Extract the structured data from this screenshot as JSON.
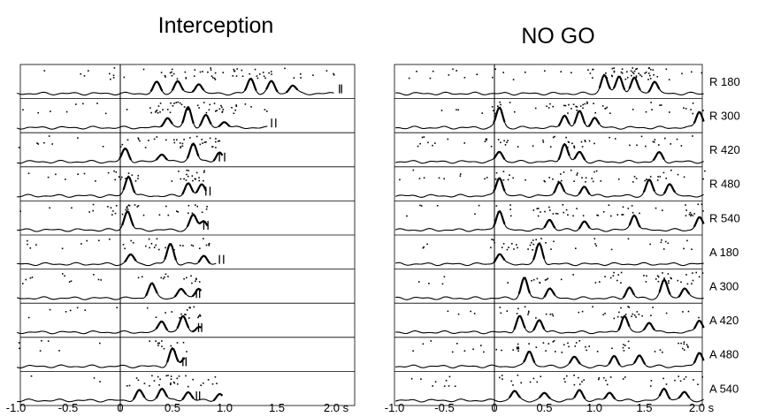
{
  "chart_data": {
    "type": "line",
    "description_kind": "peri-event raster plots with spike density histograms",
    "panels": [
      {
        "title": "Interception",
        "x_ticks": [
          "-1.0",
          "-0.5",
          "0",
          "0.5",
          "1.0",
          "1.5",
          "2.0 s"
        ],
        "xlim": [
          -1.0,
          2.2
        ],
        "event_line_x": 0,
        "rows": [
          {
            "peaks": [
              [
                0.35,
                0.5
              ],
              [
                0.55,
                0.6
              ],
              [
                0.75,
                0.5
              ],
              [
                1.25,
                0.7
              ],
              [
                1.45,
                0.55
              ],
              [
                1.65,
                0.4
              ]
            ],
            "end": 2.05,
            "end_marks": [
              2.1,
              2.12
            ],
            "raster_density": 0.9
          },
          {
            "peaks": [
              [
                0.45,
                0.5
              ],
              [
                0.65,
                0.95
              ],
              [
                0.82,
                0.55
              ],
              [
                1.0,
                0.3
              ]
            ],
            "end": 1.42,
            "end_marks": [
              1.45,
              1.49
            ],
            "raster_density": 0.8
          },
          {
            "peaks": [
              [
                0.05,
                0.6
              ],
              [
                0.4,
                0.4
              ],
              [
                0.7,
                0.9
              ],
              [
                0.95,
                0.45
              ]
            ],
            "end": 0.98,
            "end_marks": [
              0.95,
              1.0
            ],
            "raster_density": 0.7
          },
          {
            "peaks": [
              [
                0.08,
                0.95
              ],
              [
                0.65,
                0.6
              ],
              [
                0.78,
                0.5
              ]
            ],
            "end": 0.83,
            "end_marks": [
              0.82,
              0.86
            ],
            "raster_density": 0.6
          },
          {
            "peaks": [
              [
                0.07,
                0.9
              ],
              [
                0.7,
                0.7
              ],
              [
                0.8,
                0.4
              ]
            ],
            "end": 0.84,
            "end_marks": [
              0.8,
              0.84
            ],
            "raster_density": 0.6
          },
          {
            "peaks": [
              [
                0.1,
                0.45
              ],
              [
                0.48,
                0.95
              ],
              [
                0.8,
                0.4
              ]
            ],
            "end": 0.92,
            "end_marks": [
              0.95,
              0.99
            ],
            "raster_density": 0.5
          },
          {
            "peaks": [
              [
                0.3,
                0.7
              ],
              [
                0.58,
                0.45
              ],
              [
                0.75,
                0.5
              ]
            ],
            "end": 0.78,
            "end_marks": [
              0.73,
              0.76
            ],
            "raster_density": 0.4
          },
          {
            "peaks": [
              [
                0.4,
                0.55
              ],
              [
                0.6,
                0.75
              ],
              [
                0.75,
                0.3
              ]
            ],
            "end": 0.78,
            "end_marks": [
              0.75,
              0.78
            ],
            "raster_density": 0.4
          },
          {
            "peaks": [
              [
                0.5,
                0.8
              ],
              [
                0.62,
                0.4
              ]
            ],
            "end": 0.63,
            "end_marks": [
              0.6,
              0.63
            ],
            "raster_density": 0.35
          },
          {
            "peaks": [
              [
                0.18,
                0.45
              ],
              [
                0.4,
                0.6
              ],
              [
                0.65,
                0.4
              ],
              [
                0.95,
                0.3
              ]
            ],
            "end": 0.98,
            "end_marks": [
              0.73,
              0.76
            ],
            "raster_density": 0.5
          }
        ]
      },
      {
        "title": "NO GO",
        "x_ticks": [
          "-1.0",
          "-0.5",
          "0",
          "0.5",
          "1.0",
          "1.5",
          "2.0 s"
        ],
        "xlim": [
          -1.0,
          2.2
        ],
        "event_line_x": 0,
        "rows": [
          {
            "peaks": [
              [
                1.1,
                0.9
              ],
              [
                1.25,
                0.85
              ],
              [
                1.4,
                0.75
              ],
              [
                1.6,
                0.6
              ]
            ],
            "end": 2.1,
            "end_marks": [],
            "raster_density": 1.0
          },
          {
            "peaks": [
              [
                0.05,
                0.95
              ],
              [
                0.7,
                0.6
              ],
              [
                0.85,
                0.75
              ],
              [
                1.0,
                0.5
              ],
              [
                2.05,
                0.8
              ]
            ],
            "end": 2.1,
            "end_marks": [],
            "raster_density": 0.8
          },
          {
            "peaks": [
              [
                0.05,
                0.5
              ],
              [
                0.7,
                0.85
              ],
              [
                0.85,
                0.45
              ],
              [
                1.65,
                0.4
              ]
            ],
            "end": 2.1,
            "end_marks": [],
            "raster_density": 0.8
          },
          {
            "peaks": [
              [
                0.05,
                0.9
              ],
              [
                0.65,
                0.7
              ],
              [
                0.9,
                0.45
              ],
              [
                1.55,
                0.75
              ],
              [
                1.75,
                0.6
              ]
            ],
            "end": 2.1,
            "end_marks": [],
            "raster_density": 0.8
          },
          {
            "peaks": [
              [
                0.05,
                0.95
              ],
              [
                0.55,
                0.5
              ],
              [
                0.9,
                0.4
              ],
              [
                1.4,
                0.75
              ],
              [
                2.05,
                0.6
              ]
            ],
            "end": 2.1,
            "end_marks": [],
            "raster_density": 0.8
          },
          {
            "peaks": [
              [
                0.05,
                0.5
              ],
              [
                0.45,
                0.95
              ]
            ],
            "end": 2.1,
            "end_marks": [],
            "raster_density": 0.6
          },
          {
            "peaks": [
              [
                0.3,
                0.95
              ],
              [
                0.55,
                0.45
              ],
              [
                1.35,
                0.5
              ],
              [
                1.7,
                0.85
              ],
              [
                1.9,
                0.5
              ]
            ],
            "end": 2.1,
            "end_marks": [],
            "raster_density": 0.7
          },
          {
            "peaks": [
              [
                0.25,
                0.75
              ],
              [
                0.45,
                0.6
              ],
              [
                1.3,
                0.8
              ],
              [
                1.55,
                0.5
              ],
              [
                2.05,
                0.6
              ]
            ],
            "end": 2.1,
            "end_marks": [],
            "raster_density": 0.7
          },
          {
            "peaks": [
              [
                0.35,
                0.75
              ],
              [
                0.8,
                0.45
              ],
              [
                1.2,
                0.5
              ],
              [
                1.45,
                0.55
              ],
              [
                2.05,
                0.7
              ]
            ],
            "end": 2.1,
            "end_marks": [],
            "raster_density": 0.8
          },
          {
            "peaks": [
              [
                0.2,
                0.45
              ],
              [
                0.5,
                0.35
              ],
              [
                0.85,
                0.5
              ],
              [
                1.15,
                0.4
              ],
              [
                1.7,
                0.6
              ],
              [
                1.9,
                0.4
              ]
            ],
            "end": 2.1,
            "end_marks": [],
            "raster_density": 0.7
          }
        ]
      }
    ],
    "row_labels": [
      "R 180",
      "R 300",
      "R 420",
      "R 480",
      "R 540",
      "A 180",
      "A 300",
      "A 420",
      "A 480",
      "A 540"
    ]
  }
}
